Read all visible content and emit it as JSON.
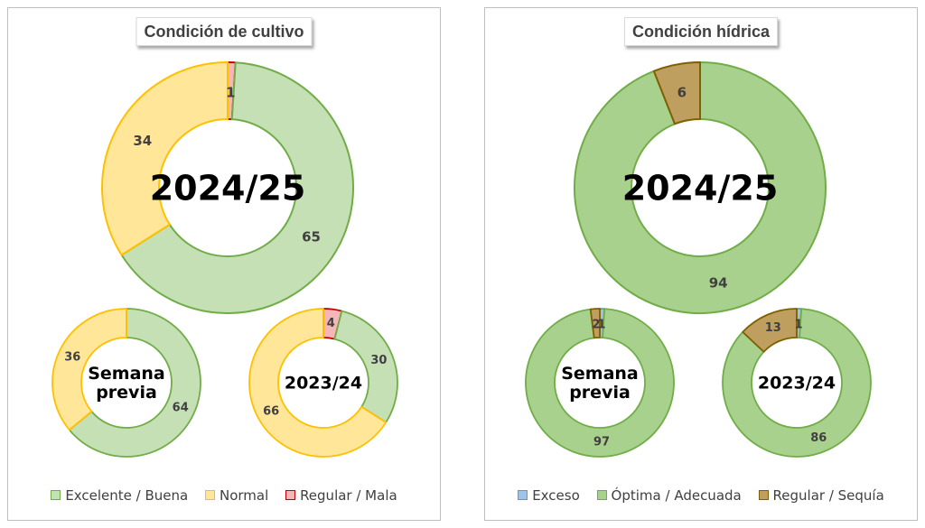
{
  "panels": [
    {
      "title": "Condición de cultivo",
      "legend": [
        {
          "label": "Excelente / Buena",
          "color": "#c5e0b4",
          "edge": "#70ad47"
        },
        {
          "label": "Normal",
          "color": "#ffe699",
          "edge": "#ffc000"
        },
        {
          "label": "Regular / Mala",
          "color": "#f4b6b6",
          "edge": "#c00000"
        }
      ]
    },
    {
      "title": "Condición hídrica",
      "legend": [
        {
          "label": "Exceso",
          "color": "#9dc3e6",
          "edge": "#5b9bd5"
        },
        {
          "label": "Óptima / Adecuada",
          "color": "#a9d18e",
          "edge": "#70ad47"
        },
        {
          "label": "Regular / Sequía",
          "color": "#bf9f5f",
          "edge": "#7f6000"
        }
      ]
    }
  ],
  "chart_data": [
    {
      "type": "pie",
      "title": "Condición de cultivo",
      "center_label": "2024/25",
      "categories": [
        "Regular / Mala",
        "Excelente / Buena",
        "Normal"
      ],
      "values": [
        1,
        65,
        34
      ],
      "colors": [
        "#f4b6b6",
        "#c5e0b4",
        "#ffe699"
      ]
    },
    {
      "type": "pie",
      "title": "Condición de cultivo",
      "center_label": "Semana previa",
      "categories": [
        "Regular / Mala",
        "Excelente / Buena",
        "Normal"
      ],
      "values": [
        0,
        64,
        36
      ],
      "colors": [
        "#f4b6b6",
        "#c5e0b4",
        "#ffe699"
      ]
    },
    {
      "type": "pie",
      "title": "Condición de cultivo",
      "center_label": "2023/24",
      "categories": [
        "Regular / Mala",
        "Excelente / Buena",
        "Normal"
      ],
      "values": [
        4,
        30,
        66
      ],
      "colors": [
        "#f4b6b6",
        "#c5e0b4",
        "#ffe699"
      ]
    },
    {
      "type": "pie",
      "title": "Condición hídrica",
      "center_label": "2024/25",
      "categories": [
        "Exceso",
        "Óptima / Adecuada",
        "Regular / Sequía"
      ],
      "values": [
        0,
        94,
        6
      ],
      "colors": [
        "#9dc3e6",
        "#a9d18e",
        "#bf9f5f"
      ]
    },
    {
      "type": "pie",
      "title": "Condición hídrica",
      "center_label": "Semana previa",
      "categories": [
        "Exceso",
        "Óptima / Adecuada",
        "Regular / Sequía"
      ],
      "values": [
        1,
        97,
        2
      ],
      "colors": [
        "#9dc3e6",
        "#a9d18e",
        "#bf9f5f"
      ]
    },
    {
      "type": "pie",
      "title": "Condición hídrica",
      "center_label": "2023/24",
      "categories": [
        "Exceso",
        "Óptima / Adecuada",
        "Regular / Sequía"
      ],
      "values": [
        1,
        86,
        13
      ],
      "colors": [
        "#9dc3e6",
        "#a9d18e",
        "#bf9f5f"
      ]
    }
  ]
}
